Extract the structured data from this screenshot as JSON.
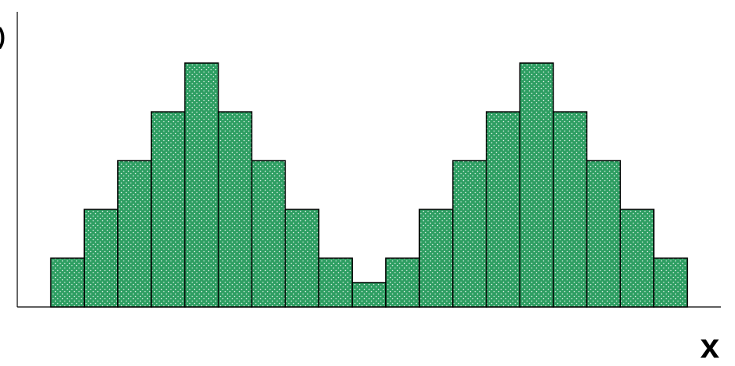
{
  "chart_data": {
    "type": "histogram",
    "x_label": "x",
    "y_label": ")",
    "bins": [
      0,
      1,
      2,
      3,
      4,
      5,
      6,
      7,
      8,
      9,
      10,
      11,
      12,
      13,
      14,
      15,
      16,
      17,
      18,
      19
    ],
    "counts": [
      2,
      4,
      6,
      8,
      10,
      8,
      6,
      4,
      2,
      1,
      2,
      4,
      6,
      8,
      10,
      8,
      6,
      4,
      2
    ],
    "color": "#2e9e62",
    "xlim": [
      -1,
      20
    ],
    "ylim": [
      0,
      12.1
    ]
  }
}
